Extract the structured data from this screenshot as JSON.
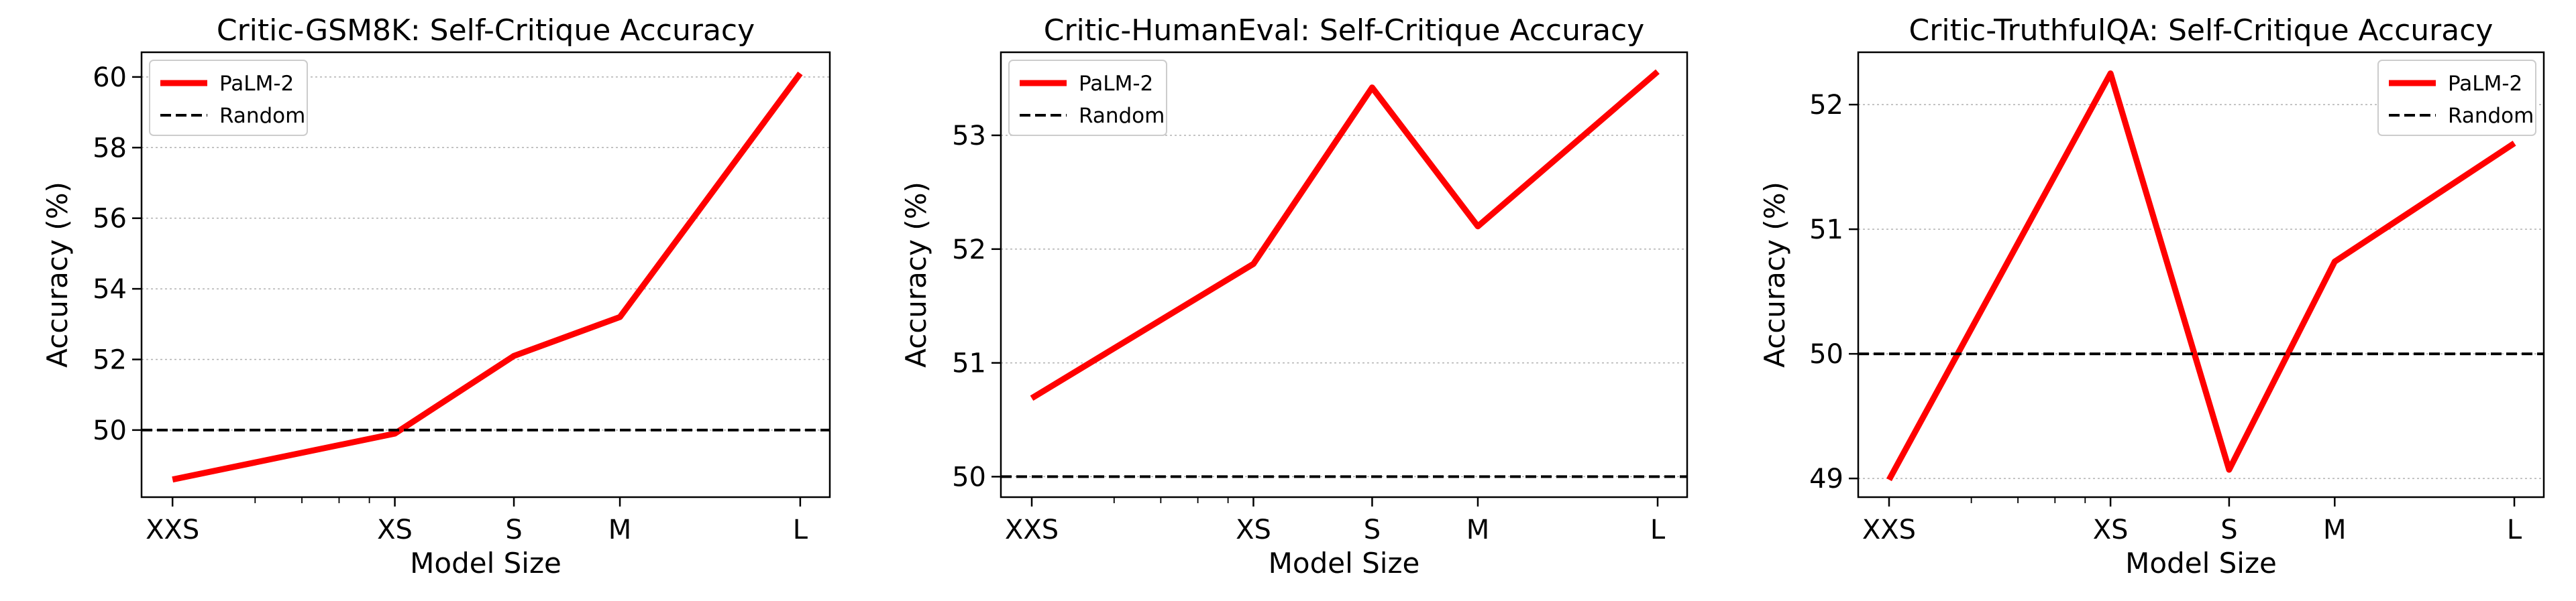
{
  "colors": {
    "palm2": "#ff0000",
    "random": "#000000"
  },
  "chart_data": [
    {
      "type": "line",
      "title": "Critic-GSM8K: Self-Critique Accuracy",
      "xlabel": "Model Size",
      "ylabel": "Accuracy (%)",
      "x_scale": "log",
      "x": [
        "XXS",
        "XS",
        "S",
        "M",
        "L"
      ],
      "series": [
        {
          "name": "PaLM-2",
          "values": [
            48.6,
            49.9,
            52.1,
            53.2,
            60.1
          ],
          "color": "#ff0000"
        },
        {
          "name": "Random",
          "values": [
            50,
            50,
            50,
            50,
            50
          ],
          "color": "#000000",
          "style": "dashed"
        }
      ],
      "y_ticks": [
        "50",
        "52",
        "54",
        "56",
        "58",
        "60"
      ],
      "ylim": [
        48.1,
        60.7
      ],
      "grid": "horizontal",
      "legend_position": "top-left"
    },
    {
      "type": "line",
      "title": "Critic-HumanEval: Self-Critique Accuracy",
      "xlabel": "Model Size",
      "ylabel": "Accuracy (%)",
      "x_scale": "log",
      "x": [
        "XXS",
        "XS",
        "S",
        "M",
        "L"
      ],
      "series": [
        {
          "name": "PaLM-2",
          "values": [
            50.69,
            51.87,
            53.42,
            52.2,
            53.56
          ],
          "color": "#ff0000"
        },
        {
          "name": "Random",
          "values": [
            50,
            50,
            50,
            50,
            50
          ],
          "color": "#000000",
          "style": "dashed"
        }
      ],
      "y_ticks": [
        "50",
        "51",
        "52",
        "53"
      ],
      "ylim": [
        49.82,
        53.73
      ],
      "grid": "horizontal",
      "legend_position": "top-left"
    },
    {
      "type": "line",
      "title": "Critic-TruthfulQA: Self-Critique Accuracy",
      "xlabel": "Model Size",
      "ylabel": "Accuracy (%)",
      "x_scale": "log",
      "x": [
        "XXS",
        "XS",
        "S",
        "M",
        "L"
      ],
      "series": [
        {
          "name": "PaLM-2",
          "values": [
            48.99,
            52.25,
            49.07,
            50.74,
            51.69
          ],
          "color": "#ff0000"
        },
        {
          "name": "Random",
          "values": [
            50,
            50,
            50,
            50,
            50
          ],
          "color": "#000000",
          "style": "dashed"
        }
      ],
      "y_ticks": [
        "49",
        "50",
        "51",
        "52"
      ],
      "ylim": [
        48.85,
        52.42
      ],
      "grid": "horizontal",
      "legend_position": "top-right"
    }
  ]
}
